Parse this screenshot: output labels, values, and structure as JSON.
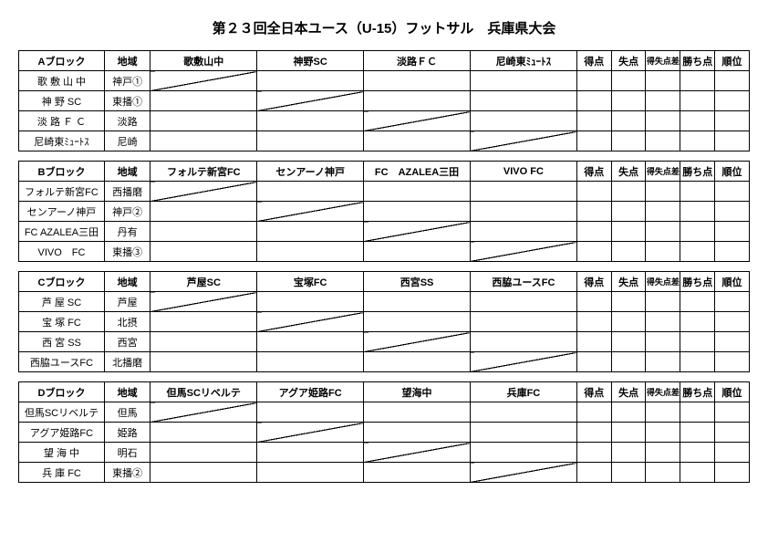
{
  "title": "第２３回全日本ユース（U-15）フットサル　兵庫県大会",
  "columns": {
    "region": "地域",
    "tokuten": "得点",
    "shitten": "失点",
    "tokushitsu": "得失点差",
    "kachiten": "勝ち点",
    "juni": "順位"
  },
  "blocks": [
    {
      "name": "Aブロック",
      "teams": [
        {
          "name": "歌敷山中",
          "row_label": "歌 敷 山 中",
          "region": "神戸①"
        },
        {
          "name": "神野SC",
          "row_label": "神 野 SC",
          "region": "東播①"
        },
        {
          "name": "淡路ＦＣ",
          "row_label": "淡 路 Ｆ Ｃ",
          "region": "淡路"
        },
        {
          "name": "尼崎東ﾐｭｰﾄｽ",
          "row_label": "尼崎東ﾐｭｰﾄｽ",
          "region": "尼崎"
        }
      ]
    },
    {
      "name": "Bブロック",
      "teams": [
        {
          "name": "フォルテ新宮FC",
          "row_label": "フォルテ新宮FC",
          "region": "西播磨"
        },
        {
          "name": "センアーノ神戸",
          "row_label": "センアーノ神戸",
          "region": "神戸②"
        },
        {
          "name": "FC　AZALEA三田",
          "row_label": "FC AZALEA三田",
          "region": "丹有"
        },
        {
          "name": "VIVO FC",
          "row_label": "VIVO　FC",
          "region": "東播③"
        }
      ]
    },
    {
      "name": "Cブロック",
      "teams": [
        {
          "name": "芦屋SC",
          "row_label": "芦 屋 SC",
          "region": "芦屋"
        },
        {
          "name": "宝塚FC",
          "row_label": "宝 塚 FC",
          "region": "北摂"
        },
        {
          "name": "西宮SS",
          "row_label": "西 宮 SS",
          "region": "西宮"
        },
        {
          "name": "西脇ユースFC",
          "row_label": "西脇ユースFC",
          "region": "北播磨"
        }
      ]
    },
    {
      "name": "Dブロック",
      "teams": [
        {
          "name": "但馬SCリベルテ",
          "row_label": "但馬SCリベルテ",
          "region": "但馬"
        },
        {
          "name": "アグア姫路FC",
          "row_label": "アグア姫路FC",
          "region": "姫路"
        },
        {
          "name": "望海中",
          "row_label": "望 海 中",
          "region": "明石"
        },
        {
          "name": "兵庫FC",
          "row_label": "兵 庫 FC",
          "region": "東播②"
        }
      ]
    }
  ]
}
